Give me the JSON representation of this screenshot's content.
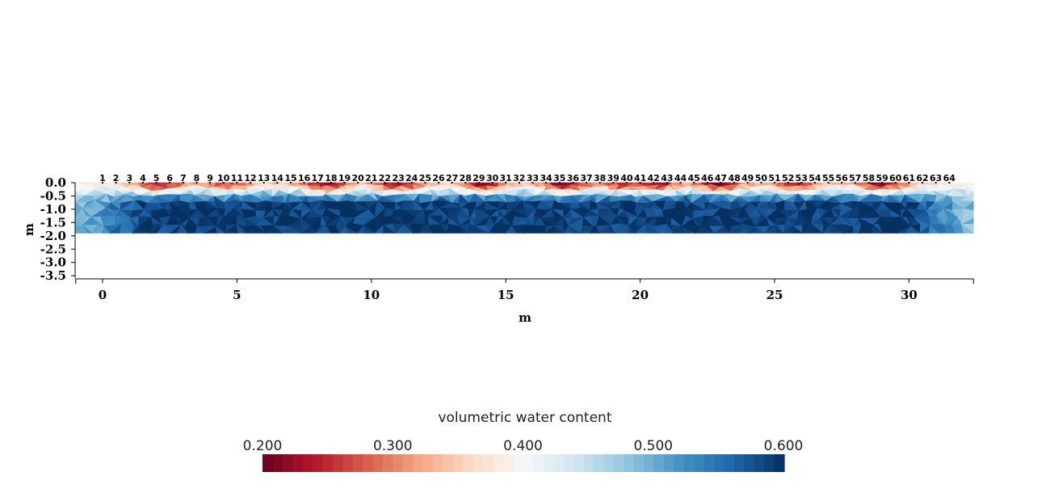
{
  "chart_data": {
    "type": "heatmap",
    "xlabel": "m",
    "ylabel": "m",
    "xlim": [
      -1,
      32.4
    ],
    "ylim": [
      -3.6,
      0.0
    ],
    "x_ticks": [
      0,
      5,
      10,
      15,
      20,
      25,
      30
    ],
    "y_ticks": [
      "0.0",
      "-0.5",
      "-1.0",
      "-1.5",
      "-2.0",
      "-2.5",
      "-3.0",
      "-3.5"
    ],
    "y_tick_values": [
      0.0,
      -0.5,
      -1.0,
      -1.5,
      -2.0,
      -2.5,
      -3.0,
      -3.5
    ],
    "electrodes": {
      "labels": [
        "1",
        "2",
        "3",
        "4",
        "5",
        "6",
        "7",
        "8",
        "9",
        "10",
        "11",
        "12",
        "13",
        "14",
        "15",
        "16",
        "17",
        "18",
        "19",
        "20",
        "21",
        "22",
        "23",
        "24",
        "25",
        "26",
        "27",
        "28",
        "29",
        "30",
        "31",
        "32",
        "33",
        "34",
        "35",
        "36",
        "37",
        "38",
        "39",
        "40",
        "41",
        "42",
        "43",
        "44",
        "45",
        "46",
        "47",
        "48",
        "49",
        "50",
        "51",
        "52",
        "53",
        "54",
        "55",
        "56",
        "57",
        "58",
        "59",
        "60",
        "61",
        "62",
        "63",
        "64"
      ],
      "first_x": 0.0,
      "spacing": 0.5
    },
    "section": {
      "dry_zones": [
        {
          "x": 2.1,
          "strength": 0.9
        },
        {
          "x": 4.6,
          "strength": 0.6
        },
        {
          "x": 8.3,
          "strength": 1.0
        },
        {
          "x": 11.0,
          "strength": 0.9
        },
        {
          "x": 14.2,
          "strength": 0.9
        },
        {
          "x": 17.2,
          "strength": 1.0
        },
        {
          "x": 19.4,
          "strength": 0.8
        },
        {
          "x": 20.6,
          "strength": 0.9
        },
        {
          "x": 23.0,
          "strength": 1.0
        },
        {
          "x": 25.8,
          "strength": 0.8
        },
        {
          "x": 29.0,
          "strength": 1.0
        }
      ],
      "wet_value": 0.59,
      "dry_value": 0.2,
      "edge_value": 0.42
    },
    "colorbar": {
      "title": "volumetric water content",
      "ticks": [
        "0.200",
        "0.300",
        "0.400",
        "0.500",
        "0.600"
      ],
      "min": 0.2,
      "max": 0.6,
      "colormap": [
        "#67001f",
        "#b2182b",
        "#d6604d",
        "#f4a582",
        "#fddbc7",
        "#f7f7f7",
        "#d1e5f0",
        "#92c5de",
        "#4393c3",
        "#2166ac",
        "#053061"
      ]
    }
  }
}
